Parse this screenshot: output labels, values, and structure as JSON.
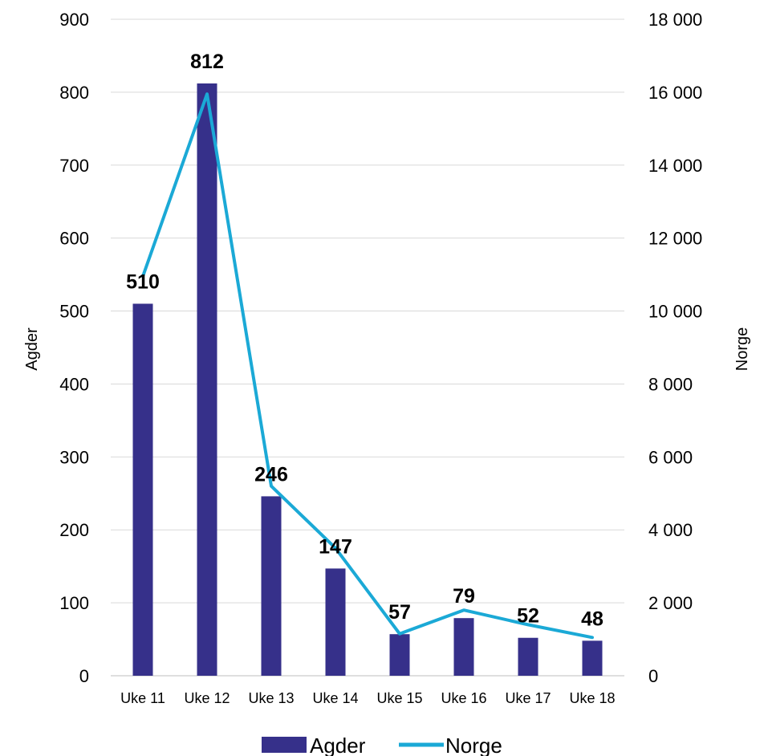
{
  "chart_data": {
    "type": "bar",
    "categories": [
      "Uke 11",
      "Uke 12",
      "Uke 13",
      "Uke 14",
      "Uke 15",
      "Uke 16",
      "Uke 17",
      "Uke 18"
    ],
    "series": [
      {
        "name": "Agder",
        "type": "bar",
        "axis": "left",
        "color": "#36308A",
        "values": [
          510,
          812,
          246,
          147,
          57,
          79,
          52,
          48
        ]
      },
      {
        "name": "Norge",
        "type": "line",
        "axis": "right",
        "color": "#1BA9D6",
        "values": [
          10950,
          15950,
          5200,
          3500,
          1150,
          1800,
          1400,
          1050
        ]
      }
    ],
    "data_labels": [
      "510",
      "812",
      "246",
      "147",
      "57",
      "79",
      "52",
      "48"
    ],
    "ylabel": "Agder",
    "ylabel_right": "Norge",
    "ylim": [
      0,
      900
    ],
    "ylim_right": [
      0,
      18000
    ],
    "yticks": [
      "0",
      "100",
      "200",
      "300",
      "400",
      "500",
      "600",
      "700",
      "800",
      "900"
    ],
    "yticks_right": [
      "0",
      "2 000",
      "4 000",
      "6 000",
      "8 000",
      "10 000",
      "12 000",
      "14 000",
      "16 000",
      "18 000"
    ],
    "grid": true,
    "legend_position": "bottom",
    "legend": [
      "Agder",
      "Norge"
    ]
  }
}
